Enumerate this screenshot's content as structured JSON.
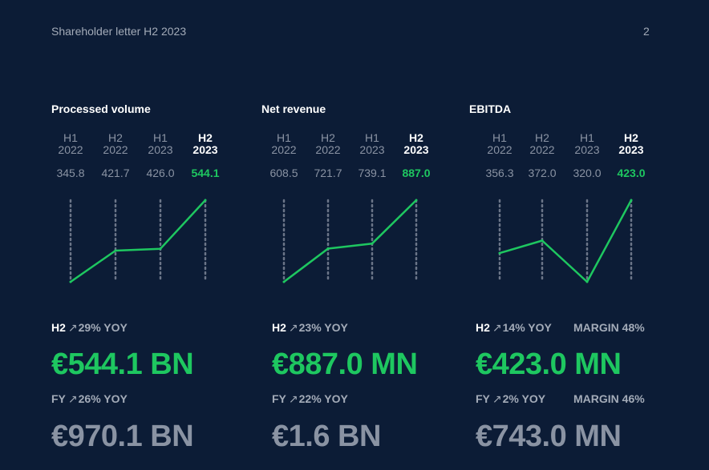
{
  "header": {
    "title": "Shareholder letter H2 2023",
    "page_number": "2"
  },
  "colors": {
    "background": "#0c1c36",
    "accent": "#1ec760",
    "muted": "#8a93a3",
    "dotted_line": "#6b7588"
  },
  "chart_data": [
    {
      "type": "line",
      "title": "Processed volume",
      "categories": [
        "H1 2022",
        "H2 2022",
        "H1 2023",
        "H2 2023"
      ],
      "category_labels": [
        {
          "half": "H1",
          "year": "2022"
        },
        {
          "half": "H2",
          "year": "2022"
        },
        {
          "half": "H1",
          "year": "2023"
        },
        {
          "half": "H2",
          "year": "2023"
        }
      ],
      "values": [
        345.8,
        421.7,
        426.0,
        544.1
      ],
      "value_labels": [
        "345.8",
        "421.7",
        "426.0",
        "544.1"
      ],
      "highlight_index": 3,
      "grid": "dotted vertical lines",
      "h2_label": {
        "period": "H2",
        "arrow": "↗",
        "text": "29% YOY"
      },
      "h2_value": "€544.1 BN",
      "fy_label": {
        "period": "FY",
        "arrow": "↗",
        "text": "26% YOY"
      },
      "fy_value": "€970.1 BN"
    },
    {
      "type": "line",
      "title": "Net revenue",
      "categories": [
        "H1 2022",
        "H2 2022",
        "H1 2023",
        "H2 2023"
      ],
      "category_labels": [
        {
          "half": "H1",
          "year": "2022"
        },
        {
          "half": "H2",
          "year": "2022"
        },
        {
          "half": "H1",
          "year": "2023"
        },
        {
          "half": "H2",
          "year": "2023"
        }
      ],
      "values": [
        608.5,
        721.7,
        739.1,
        887.0
      ],
      "value_labels": [
        "608.5",
        "721.7",
        "739.1",
        "887.0"
      ],
      "highlight_index": 3,
      "grid": "dotted vertical lines",
      "h2_label": {
        "period": "H2",
        "arrow": "↗",
        "text": "23% YOY"
      },
      "h2_value": "€887.0 MN",
      "fy_label": {
        "period": "FY",
        "arrow": "↗",
        "text": "22% YOY"
      },
      "fy_value": "€1.6 BN"
    },
    {
      "type": "line",
      "title": "EBITDA",
      "categories": [
        "H1 2022",
        "H2 2022",
        "H1 2023",
        "H2 2023"
      ],
      "category_labels": [
        {
          "half": "H1",
          "year": "2022"
        },
        {
          "half": "H2",
          "year": "2022"
        },
        {
          "half": "H1",
          "year": "2023"
        },
        {
          "half": "H2",
          "year": "2023"
        }
      ],
      "values": [
        356.3,
        372.0,
        320.0,
        423.0
      ],
      "value_labels": [
        "356.3",
        "372.0",
        "320.0",
        "423.0"
      ],
      "highlight_index": 3,
      "grid": "dotted vertical lines",
      "h2_label": {
        "period": "H2",
        "arrow": "↗",
        "text": "14% YOY"
      },
      "h2_margin": "MARGIN 48%",
      "h2_value": "€423.0 MN",
      "fy_label": {
        "period": "FY",
        "arrow": "↗",
        "text": "2% YOY"
      },
      "fy_margin": "MARGIN 46%",
      "fy_value": "€743.0 MN"
    }
  ]
}
